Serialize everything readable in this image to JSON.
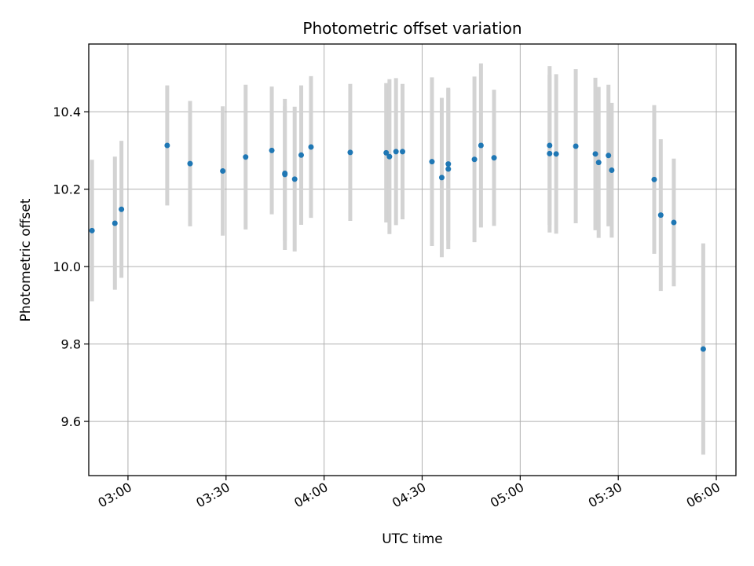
{
  "chart_data": {
    "type": "scatter",
    "title": "Photometric offset variation",
    "xlabel": "UTC time",
    "ylabel": "Photometric offset",
    "xlim": [
      "02:48",
      "06:06"
    ],
    "ylim": [
      9.46,
      10.575
    ],
    "x_ticks": [
      "03:00",
      "03:30",
      "04:00",
      "04:30",
      "05:00",
      "05:30",
      "06:00"
    ],
    "y_ticks": [
      9.6,
      9.8,
      10.0,
      10.2,
      10.4
    ],
    "grid": true,
    "point_color": "#1f77b4",
    "errorbar_color": "#d3d3d3",
    "points": [
      {
        "x": "02:49",
        "y": 10.093,
        "err": 0.183
      },
      {
        "x": "02:56",
        "y": 10.112,
        "err": 0.172
      },
      {
        "x": "02:58",
        "y": 10.148,
        "err": 0.177
      },
      {
        "x": "03:12",
        "y": 10.313,
        "err": 0.155
      },
      {
        "x": "03:19",
        "y": 10.266,
        "err": 0.162
      },
      {
        "x": "03:29",
        "y": 10.247,
        "err": 0.167
      },
      {
        "x": "03:36",
        "y": 10.283,
        "err": 0.187
      },
      {
        "x": "03:44",
        "y": 10.3,
        "err": 0.165
      },
      {
        "x": "03:48",
        "y": 10.241,
        "err": 0.173
      },
      {
        "x": "03:48",
        "y": 10.238,
        "err": 0.195
      },
      {
        "x": "03:51",
        "y": 10.226,
        "err": 0.187
      },
      {
        "x": "03:53",
        "y": 10.288,
        "err": 0.18
      },
      {
        "x": "03:56",
        "y": 10.309,
        "err": 0.183
      },
      {
        "x": "04:08",
        "y": 10.295,
        "err": 0.177
      },
      {
        "x": "04:19",
        "y": 10.294,
        "err": 0.18
      },
      {
        "x": "04:20",
        "y": 10.284,
        "err": 0.2
      },
      {
        "x": "04:22",
        "y": 10.297,
        "err": 0.19
      },
      {
        "x": "04:24",
        "y": 10.297,
        "err": 0.175
      },
      {
        "x": "04:33",
        "y": 10.271,
        "err": 0.218
      },
      {
        "x": "04:36",
        "y": 10.23,
        "err": 0.206
      },
      {
        "x": "04:38",
        "y": 10.265,
        "err": 0.197
      },
      {
        "x": "04:38",
        "y": 10.252,
        "err": 0.207
      },
      {
        "x": "04:46",
        "y": 10.277,
        "err": 0.214
      },
      {
        "x": "04:48",
        "y": 10.313,
        "err": 0.212
      },
      {
        "x": "04:52",
        "y": 10.281,
        "err": 0.176
      },
      {
        "x": "05:09",
        "y": 10.313,
        "err": 0.205
      },
      {
        "x": "05:09",
        "y": 10.292,
        "err": 0.204
      },
      {
        "x": "05:11",
        "y": 10.291,
        "err": 0.206
      },
      {
        "x": "05:17",
        "y": 10.311,
        "err": 0.199
      },
      {
        "x": "05:23",
        "y": 10.291,
        "err": 0.197
      },
      {
        "x": "05:24",
        "y": 10.269,
        "err": 0.195
      },
      {
        "x": "05:27",
        "y": 10.287,
        "err": 0.183
      },
      {
        "x": "05:28",
        "y": 10.249,
        "err": 0.174
      },
      {
        "x": "05:41",
        "y": 10.225,
        "err": 0.192
      },
      {
        "x": "05:43",
        "y": 10.133,
        "err": 0.196
      },
      {
        "x": "05:47",
        "y": 10.114,
        "err": 0.165
      },
      {
        "x": "05:56",
        "y": 9.787,
        "err": 0.273
      }
    ]
  }
}
